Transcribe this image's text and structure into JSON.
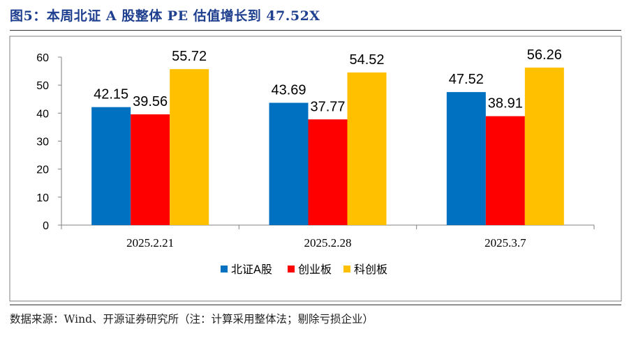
{
  "header": {
    "title": "图5：本周北证 A 股整体 PE 估值增长到 47.52X"
  },
  "footer": {
    "source": "数据来源：Wind、开源证券研究所（注：计算采用整体法；剔除亏损企业）"
  },
  "colors": {
    "series": [
      "#0070c0",
      "#ff0000",
      "#ffc000"
    ]
  },
  "chart_data": {
    "type": "bar",
    "title": "",
    "xlabel": "",
    "ylabel": "",
    "categories": [
      "2025.2.21",
      "2025.2.28",
      "2025.3.7"
    ],
    "series": [
      {
        "name": "北证A股",
        "values": [
          42.15,
          43.69,
          47.52
        ]
      },
      {
        "name": "创业板",
        "values": [
          39.56,
          37.77,
          38.91
        ]
      },
      {
        "name": "科创板",
        "values": [
          55.72,
          54.52,
          56.26
        ]
      }
    ],
    "ylim": [
      0,
      60
    ],
    "yticks": [
      0,
      10,
      20,
      30,
      40,
      50,
      60
    ],
    "grid": false,
    "legend": "bottom-center",
    "data_labels": true
  }
}
